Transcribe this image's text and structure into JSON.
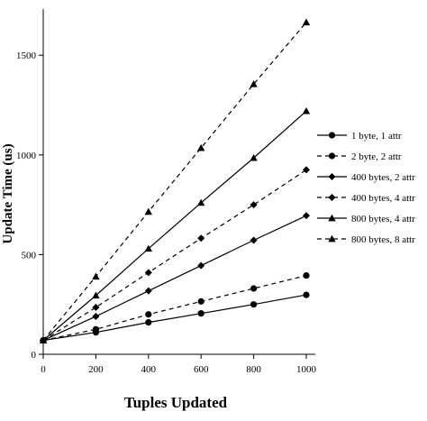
{
  "chart_data": {
    "type": "line",
    "xlabel": "Tuples Updated",
    "ylabel": "Update Time (us)",
    "xlim": [
      0,
      1000
    ],
    "ylim": [
      0,
      1700
    ],
    "x_ticks": [
      0,
      200,
      400,
      600,
      800,
      1000
    ],
    "y_ticks": [
      0,
      500,
      1000,
      1500
    ],
    "grid": false,
    "legend_position": "right",
    "x": [
      0,
      200,
      400,
      600,
      800,
      1000
    ],
    "series": [
      {
        "name": "1 byte, 1 attr",
        "values": [
          70,
          110,
          160,
          205,
          250,
          298
        ],
        "marker": "circle",
        "line": "solid"
      },
      {
        "name": "2 byte, 2 attr",
        "values": [
          70,
          125,
          200,
          265,
          330,
          395
        ],
        "marker": "circle",
        "line": "dashed"
      },
      {
        "name": "400 bytes, 2 attr",
        "values": [
          70,
          190,
          318,
          445,
          572,
          695
        ],
        "marker": "diamond",
        "line": "solid"
      },
      {
        "name": "400 bytes, 4 attr",
        "values": [
          70,
          235,
          410,
          582,
          750,
          925
        ],
        "marker": "diamond",
        "line": "dashed"
      },
      {
        "name": "800 bytes, 4 attr",
        "values": [
          70,
          295,
          530,
          760,
          985,
          1220
        ],
        "marker": "triangle",
        "line": "solid"
      },
      {
        "name": "800 bytes, 8 attr",
        "values": [
          70,
          390,
          715,
          1035,
          1355,
          1665
        ],
        "marker": "triangle",
        "line": "dashed"
      }
    ]
  }
}
